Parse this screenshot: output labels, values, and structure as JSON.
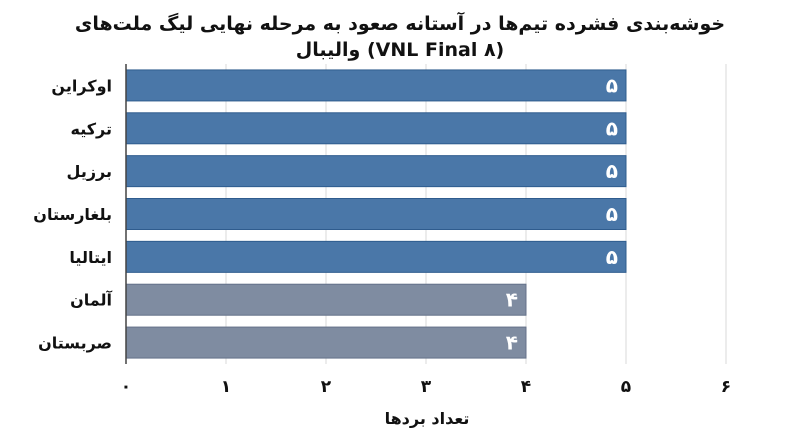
{
  "chart_data": {
    "type": "bar",
    "orientation": "horizontal",
    "title_line1": "خوشه‌بندی فشرده تیم‌ها در آستانه صعود به مرحله نهایی لیگ ملت‌های",
    "title_line2": "والیبال (VNL Final ۸)",
    "xlabel": "تعداد بردها",
    "ylabel": "",
    "categories": [
      "اوکراین",
      "ترکیه",
      "برزیل",
      "بلغارستان",
      "ایتالیا",
      "آلمان",
      "صربستان"
    ],
    "values": [
      5,
      5,
      5,
      5,
      5,
      4,
      4
    ],
    "data_labels": [
      "۵",
      "۵",
      "۵",
      "۵",
      "۵",
      "۴",
      "۴"
    ],
    "xlim": [
      0,
      6
    ],
    "x_ticks": [
      0,
      1,
      2,
      3,
      4,
      5,
      6
    ],
    "x_tick_labels": [
      "۰",
      "۱",
      "۲",
      "۳",
      "۴",
      "۵",
      "۶"
    ],
    "grid": true,
    "colors": {
      "highlight": "#4a77a8",
      "highlight_edge": "#2f5c8e",
      "muted": "#7f8ca1",
      "muted_edge": "#647189"
    },
    "highlight_values": [
      5
    ]
  }
}
